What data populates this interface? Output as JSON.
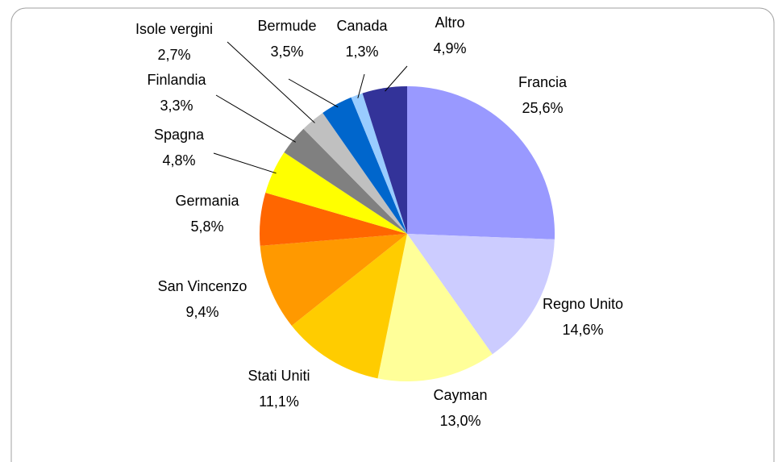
{
  "chart_data": {
    "type": "pie",
    "categories": [
      "Francia",
      "Regno Unito",
      "Cayman",
      "Stati Uniti",
      "San Vincenzo",
      "Germania",
      "Spagna",
      "Finlandia",
      "Isole vergini",
      "Bermude",
      "Canada",
      "Altro"
    ],
    "values": [
      25.6,
      14.6,
      13.0,
      11.1,
      9.4,
      5.8,
      4.8,
      3.3,
      2.7,
      3.5,
      1.3,
      4.9
    ],
    "value_labels": [
      "25,6%",
      "14,6%",
      "13,0%",
      "11,1%",
      "9,4%",
      "5,8%",
      "4,8%",
      "3,3%",
      "2,7%",
      "3,5%",
      "1,3%",
      "4,9%"
    ],
    "colors": [
      "#9999ff",
      "#ccccff",
      "#ffff99",
      "#ffcc00",
      "#ff9900",
      "#ff6600",
      "#ffff00",
      "#808080",
      "#c0c0c0",
      "#0066cc",
      "#99ccff",
      "#333399"
    ]
  }
}
